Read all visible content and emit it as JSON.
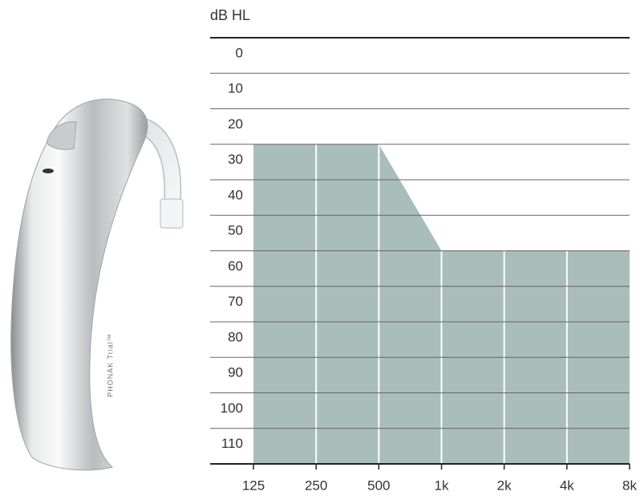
{
  "device_label": "PHONAK Trial™",
  "chart_data": {
    "type": "area",
    "y_label": "dB HL",
    "categories": [
      "125",
      "250",
      "500",
      "1k",
      "2k",
      "4k",
      "8k"
    ],
    "values": [
      30,
      30,
      30,
      60,
      60,
      60,
      60
    ],
    "color": "#a9bdbb",
    "ylim": [
      0,
      120
    ],
    "inverted_y": true,
    "yticks": [
      0,
      10,
      20,
      30,
      40,
      50,
      60,
      70,
      80,
      90,
      100,
      110
    ],
    "grid": true
  }
}
